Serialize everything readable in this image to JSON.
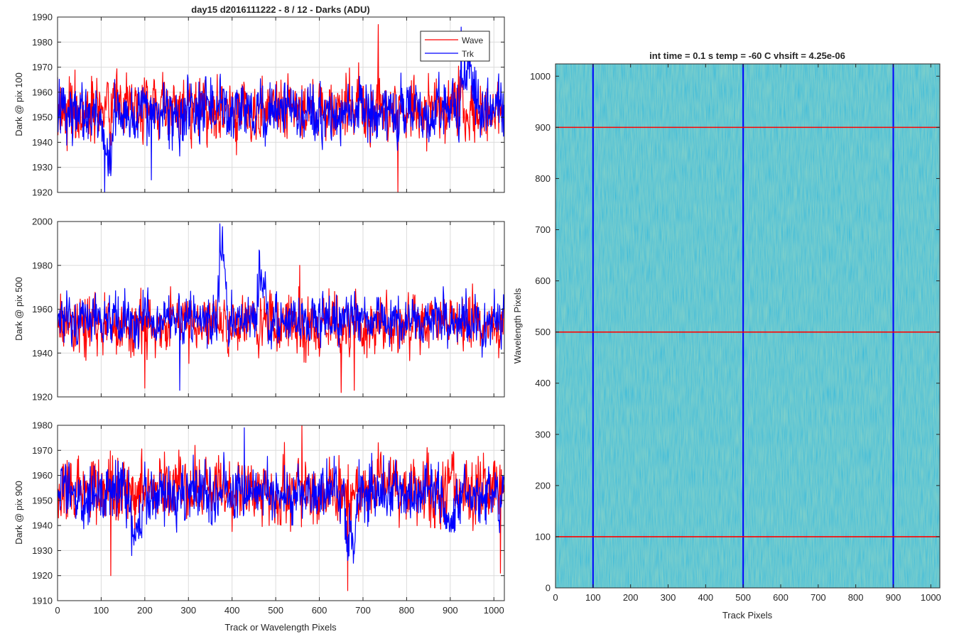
{
  "figure": {
    "left_title": "day15 d2016111222 - 8 / 12 - Darks (ADU)",
    "right_title": "int time = 0.1 s   temp = -60 C   vhsift = 4.25e-06",
    "colors": {
      "wave": "#ff0000",
      "trk": "#0000ff",
      "grid": "#dcdcdc",
      "axis": "#262626",
      "image_base": "#21a0b2"
    }
  },
  "chart_data": [
    {
      "type": "line",
      "title": "day15 d2016111222 - 8 / 12 - Darks (ADU)",
      "xlabel": "",
      "ylabel": "Dark @ pix 100",
      "xlim": [
        0,
        1024
      ],
      "ylim": [
        1920,
        1990
      ],
      "xticks": [
        0,
        100,
        200,
        300,
        400,
        500,
        600,
        700,
        800,
        900,
        1000
      ],
      "yticks": [
        1920,
        1930,
        1940,
        1950,
        1960,
        1970,
        1980,
        1990
      ],
      "legend": {
        "position": "top-right",
        "entries": [
          "Wave",
          "Trk"
        ]
      },
      "series": [
        {
          "name": "Wave",
          "color": "#ff0000",
          "mean": 1953,
          "sd": 7,
          "spikes": [
            [
              735,
              1987
            ],
            [
              780,
              1920
            ],
            [
              120,
              1929
            ],
            [
              410,
              1935
            ]
          ]
        },
        {
          "name": "Trk",
          "color": "#0000ff",
          "mean": 1952,
          "sd": 6.5,
          "features": [
            [
              100,
              130,
              1932
            ],
            [
              920,
              960,
              1972
            ]
          ],
          "spikes": [
            [
              108,
              1920
            ],
            [
              925,
              1986
            ],
            [
              215,
              1925
            ]
          ]
        }
      ]
    },
    {
      "type": "line",
      "title": "",
      "xlabel": "",
      "ylabel": "Dark @ pix 500",
      "xlim": [
        0,
        1024
      ],
      "ylim": [
        1920,
        2000
      ],
      "xticks": [
        0,
        100,
        200,
        300,
        400,
        500,
        600,
        700,
        800,
        900,
        1000
      ],
      "yticks": [
        1920,
        1940,
        1960,
        1980,
        2000
      ],
      "series": [
        {
          "name": "Wave",
          "color": "#ff0000",
          "mean": 1953,
          "sd": 7,
          "spikes": [
            [
              650,
              1922
            ],
            [
              680,
              1923
            ],
            [
              555,
              1980
            ],
            [
              200,
              1924
            ]
          ]
        },
        {
          "name": "Trk",
          "color": "#0000ff",
          "mean": 1955,
          "sd": 6,
          "features": [
            [
              365,
              390,
              1988
            ],
            [
              455,
              480,
              1976
            ]
          ],
          "spikes": [
            [
              372,
              1999
            ],
            [
              280,
              1923
            ],
            [
              462,
              1987
            ]
          ]
        }
      ]
    },
    {
      "type": "line",
      "title": "",
      "xlabel": "Track or Wavelength Pixels",
      "ylabel": "Dark @ pix 900",
      "xlim": [
        0,
        1024
      ],
      "ylim": [
        1910,
        1980
      ],
      "xticks": [
        0,
        100,
        200,
        300,
        400,
        500,
        600,
        700,
        800,
        900,
        1000
      ],
      "yticks": [
        1910,
        1920,
        1930,
        1940,
        1950,
        1960,
        1970,
        1980
      ],
      "series": [
        {
          "name": "Wave",
          "color": "#ff0000",
          "mean": 1954,
          "sd": 7,
          "spikes": [
            [
              665,
              1914
            ],
            [
              122,
              1920
            ],
            [
              560,
              1980
            ],
            [
              1015,
              1921
            ]
          ]
        },
        {
          "name": "Trk",
          "color": "#0000ff",
          "mean": 1953,
          "sd": 6,
          "features": [
            [
              160,
              200,
              1937
            ],
            [
              650,
              690,
              1936
            ],
            [
              880,
              920,
              1937
            ]
          ],
          "spikes": [
            [
              428,
              1979
            ],
            [
              170,
              1928
            ],
            [
              665,
              1926
            ]
          ]
        }
      ]
    },
    {
      "type": "heatmap",
      "title": "int time = 0.1 s   temp = -60 C   vhsift = 4.25e-06",
      "xlabel": "Track Pixels",
      "ylabel": "Wavelength Pixels",
      "xlim": [
        0,
        1024
      ],
      "ylim": [
        0,
        1024
      ],
      "xticks": [
        0,
        100,
        200,
        300,
        400,
        500,
        600,
        700,
        800,
        900,
        1000
      ],
      "yticks": [
        0,
        100,
        200,
        300,
        400,
        500,
        600,
        700,
        800,
        900,
        1000
      ],
      "vertical_lines": {
        "color": "#0000ff",
        "x": [
          100,
          500,
          900
        ]
      },
      "horizontal_lines": {
        "color": "#ff0000",
        "y": [
          100,
          500,
          900
        ]
      }
    }
  ]
}
